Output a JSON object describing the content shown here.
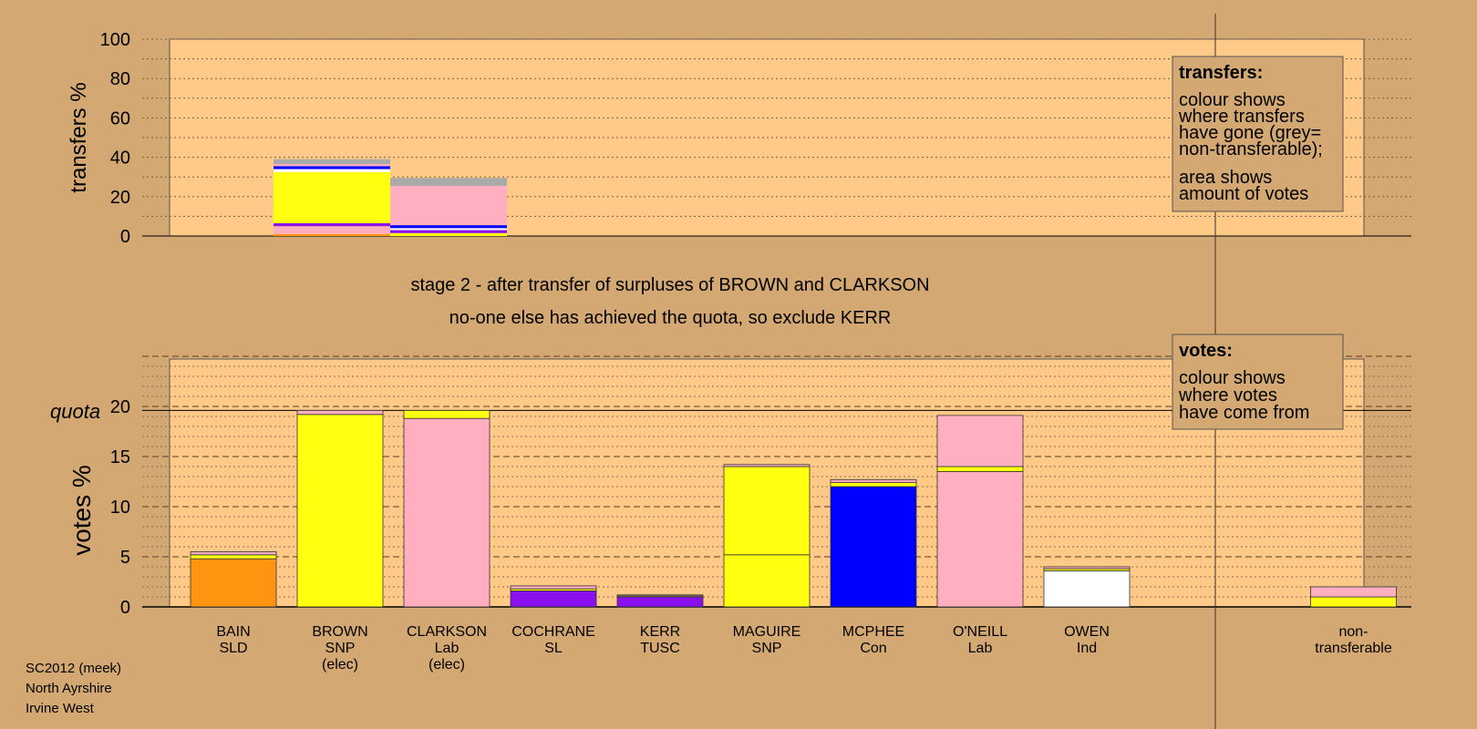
{
  "colors": {
    "background": "#d4a872",
    "plot_bg": "#ffc987",
    "SLD": "#ff9410",
    "SNP": "#ffff10",
    "Lab": "#ffafc0",
    "SL": "#8b10ee",
    "TUSC": "#8b10ee",
    "Con": "#0000ff",
    "Ind": "#ffffff",
    "grey": "#a9a9a9",
    "navy": "#10107f"
  },
  "stage_line1": "stage 2 - after transfer of surpluses of BROWN and CLARKSON",
  "stage_line2": "no-one else has achieved the quota, so exclude KERR",
  "transfers_legend": {
    "title": "transfers:",
    "lines": [
      "colour shows",
      "where transfers",
      "have gone (grey=",
      "non-transferable);"
    ],
    "lines2": [
      "area shows",
      "amount of votes"
    ]
  },
  "votes_legend": {
    "title": "votes:",
    "lines": [
      "colour shows",
      "where votes",
      "have come from"
    ]
  },
  "footer": [
    "SC2012 (meek)",
    "North Ayrshire",
    "Irvine West"
  ],
  "chart_data": [
    {
      "type": "bar",
      "stacked": true,
      "ylabel": "transfers %",
      "ylim": [
        0,
        100
      ],
      "yticks": [
        0,
        20,
        40,
        60,
        80,
        100
      ],
      "grid": true,
      "bars": [
        {
          "source": "BROWN",
          "slot": 1,
          "segments": [
            {
              "party": "SLD",
              "value": 1
            },
            {
              "party": "Lab",
              "value": 4
            },
            {
              "party": "SL",
              "value": 1.5
            },
            {
              "party": "SNP",
              "value": 26
            },
            {
              "party": "Ind",
              "value": 1.5
            },
            {
              "party": "Con",
              "value": 1.5
            },
            {
              "party": "Lab",
              "value": 1
            },
            {
              "party": "grey",
              "value": 2.5
            }
          ]
        },
        {
          "source": "CLARKSON",
          "slot": 2,
          "segments": [
            {
              "party": "SNP",
              "value": 1.5
            },
            {
              "party": "SL",
              "value": 1.5
            },
            {
              "party": "Ind",
              "value": 1
            },
            {
              "party": "Con",
              "value": 1.5
            },
            {
              "party": "Lab",
              "value": 20
            },
            {
              "party": "grey",
              "value": 4
            }
          ]
        }
      ]
    },
    {
      "type": "bar",
      "stacked": true,
      "ylabel": "votes %",
      "ylim": [
        0,
        25
      ],
      "yticks": [
        0,
        5,
        10,
        15,
        20
      ],
      "quota_label": "quota",
      "quota": 19.6,
      "grid": true,
      "categories": [
        {
          "name": "BAIN",
          "party": "SLD",
          "status": "",
          "segments": [
            {
              "party": "SLD",
              "value": 4.8
            },
            {
              "party": "SNP",
              "value": 0.4
            },
            {
              "party": "Lab",
              "value": 0.3
            }
          ]
        },
        {
          "name": "BROWN",
          "party": "SNP",
          "status": "(elec)",
          "segments": [
            {
              "party": "SNP",
              "value": 19.2
            },
            {
              "party": "Lab",
              "value": 0.4
            }
          ]
        },
        {
          "name": "CLARKSON",
          "party": "Lab",
          "status": "(elec)",
          "segments": [
            {
              "party": "Lab",
              "value": 18.8
            },
            {
              "party": "SNP",
              "value": 0.8
            }
          ]
        },
        {
          "name": "COCHRANE",
          "party": "SL",
          "status": "",
          "segments": [
            {
              "party": "SL",
              "value": 1.6
            },
            {
              "party": "SNP",
              "value": 0.2
            },
            {
              "party": "Lab",
              "value": 0.3
            }
          ]
        },
        {
          "name": "KERR",
          "party": "TUSC",
          "status": "",
          "segments": [
            {
              "party": "TUSC",
              "value": 1.0
            },
            {
              "party": "SNP",
              "value": 0.1
            },
            {
              "party": "Lab",
              "value": 0.1
            }
          ]
        },
        {
          "name": "MAGUIRE",
          "party": "SNP",
          "status": "",
          "segments": [
            {
              "party": "SNP",
              "value": 5.2
            },
            {
              "party": "SNP",
              "value": 8.8
            },
            {
              "party": "Lab",
              "value": 0.2
            }
          ]
        },
        {
          "name": "MCPHEE",
          "party": "Con",
          "status": "",
          "segments": [
            {
              "party": "Con",
              "value": 12.0
            },
            {
              "party": "SNP",
              "value": 0.4
            },
            {
              "party": "Lab",
              "value": 0.3
            }
          ]
        },
        {
          "name": "O'NEILL",
          "party": "Lab",
          "status": "",
          "segments": [
            {
              "party": "Lab",
              "value": 13.5
            },
            {
              "party": "SNP",
              "value": 0.5
            },
            {
              "party": "Lab",
              "value": 5.1
            }
          ]
        },
        {
          "name": "OWEN",
          "party": "Ind",
          "status": "",
          "segments": [
            {
              "party": "Ind",
              "value": 3.6
            },
            {
              "party": "SNP",
              "value": 0.2
            },
            {
              "party": "Lab",
              "value": 0.2
            }
          ]
        },
        {
          "name": "non-",
          "party": "transferable",
          "status": "",
          "segments": [
            {
              "party": "SNP",
              "value": 1.0
            },
            {
              "party": "Lab",
              "value": 1.0
            }
          ]
        }
      ]
    }
  ]
}
